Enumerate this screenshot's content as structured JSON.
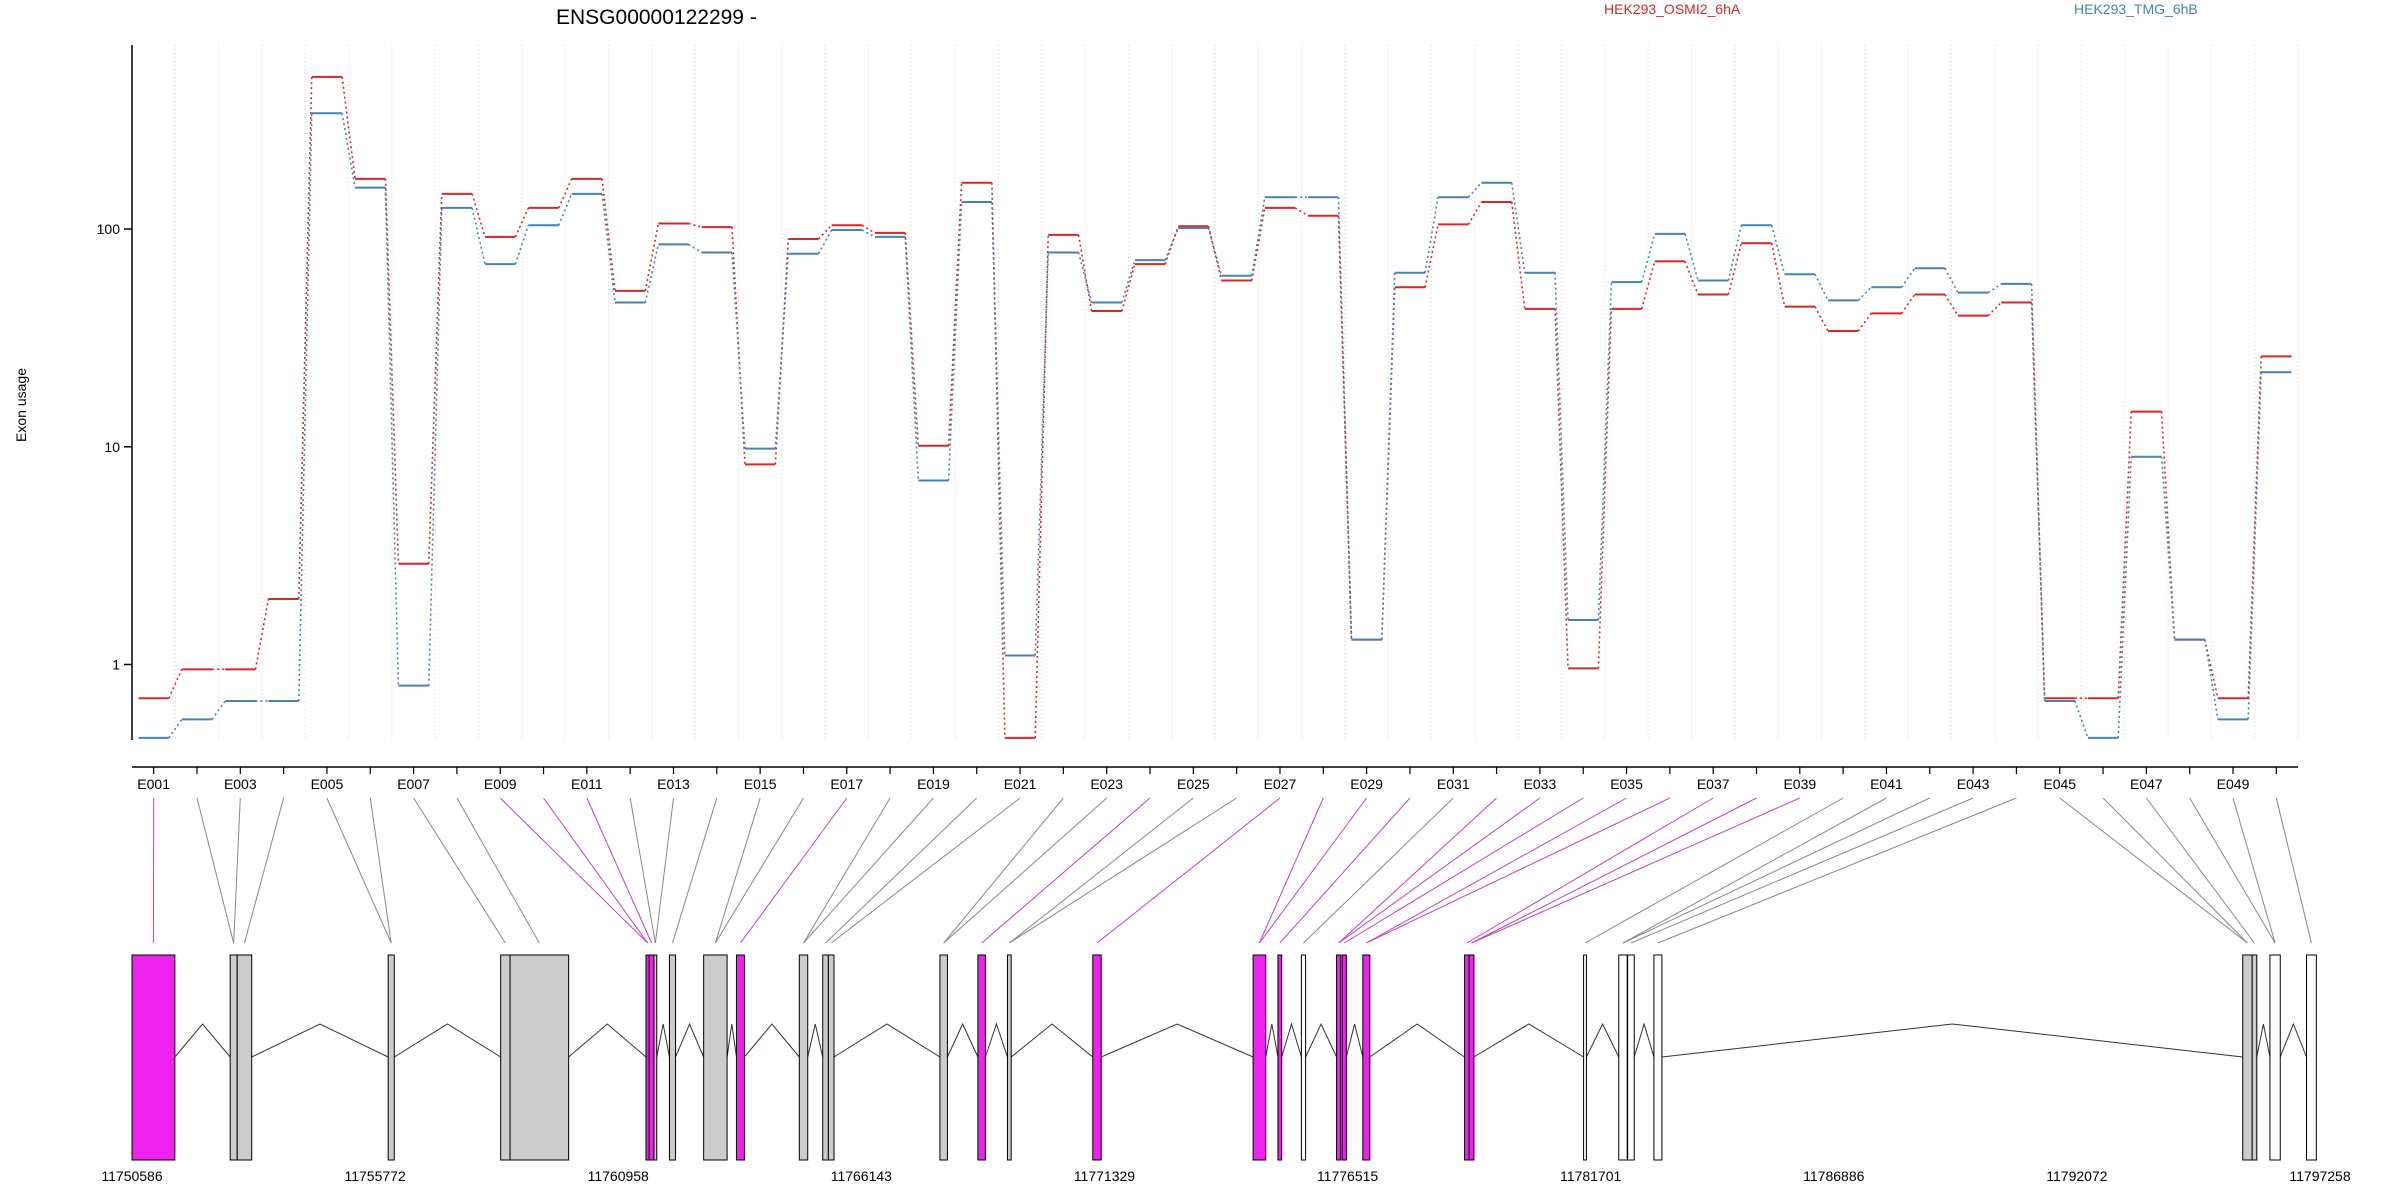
{
  "chart_data": {
    "type": "line",
    "title": "ENSG00000122299 -",
    "ylabel": "Exon usage",
    "y_scale": "log",
    "ylim": [
      0.45,
      700
    ],
    "y_ticks": [
      {
        "value": 1,
        "label": "1"
      },
      {
        "value": 10,
        "label": "10"
      },
      {
        "value": 100,
        "label": "100"
      }
    ],
    "grid": "vertical dotted per exon",
    "legend_position": "top",
    "exons": [
      "E001",
      "E002",
      "E003",
      "E004",
      "E005",
      "E006",
      "E007",
      "E008",
      "E009",
      "E010",
      "E011",
      "E012",
      "E013",
      "E014",
      "E015",
      "E016",
      "E017",
      "E018",
      "E019",
      "E020",
      "E021",
      "E022",
      "E023",
      "E024",
      "E025",
      "E026",
      "E027",
      "E028",
      "E029",
      "E030",
      "E031",
      "E032",
      "E033",
      "E034",
      "E035",
      "E036",
      "E037",
      "E038",
      "E039",
      "E040",
      "E041",
      "E042",
      "E043",
      "E044",
      "E045",
      "E046",
      "E047",
      "E048",
      "E049",
      "E050"
    ],
    "exon_tick_labels": [
      "E001",
      "E003",
      "E005",
      "E007",
      "E009",
      "E011",
      "E013",
      "E015",
      "E017",
      "E019",
      "E021",
      "E023",
      "E025",
      "E027",
      "E029",
      "E031",
      "E033",
      "E035",
      "E037",
      "E039",
      "E041",
      "E043",
      "E045",
      "E047",
      "E049"
    ],
    "series": [
      {
        "name": "HEK293_OSMI2_6hA",
        "color": "#d62728",
        "dash": "2,3",
        "values": [
          0.7,
          0.95,
          0.95,
          2.0,
          500,
          170,
          2.9,
          145,
          92,
          125,
          170,
          52,
          106,
          102,
          8.3,
          90,
          104,
          96,
          10.1,
          163,
          0.46,
          94,
          42,
          69,
          103,
          58,
          125,
          115,
          1.3,
          54,
          105,
          133,
          43,
          0.96,
          43,
          71,
          50,
          86,
          44,
          34,
          41,
          50,
          40,
          46,
          0.7,
          0.7,
          14.5,
          1.3,
          0.7,
          26
        ]
      },
      {
        "name": "HEK293_TMG_6hB",
        "color": "#4682b4",
        "dash": "2,3",
        "values": [
          0.46,
          0.56,
          0.68,
          0.68,
          340,
          155,
          0.8,
          125,
          69,
          104,
          145,
          46,
          85,
          78,
          9.8,
          77,
          99,
          92,
          7,
          133,
          1.1,
          78,
          46,
          72,
          101,
          61,
          140,
          140,
          1.3,
          63,
          140,
          163,
          63,
          1.6,
          57,
          95,
          58,
          104,
          62,
          47,
          54,
          66,
          51,
          56,
          0.68,
          0.46,
          9,
          1.3,
          0.56,
          22
        ]
      }
    ],
    "gene_model": {
      "coordinate_ticks": [
        "11750586",
        "11755772",
        "11760958",
        "11766143",
        "11771329",
        "11776515",
        "11781701",
        "11786886",
        "11792072",
        "11797258"
      ],
      "coordinate_range": [
        11750586,
        11797258
      ],
      "exon_colors": {
        "significant": "#ee22ee",
        "not_significant": "#cccccc",
        "other": "#ffffff"
      },
      "blocks": [
        {
          "s": 11750586,
          "e": 11751500,
          "c": "sig"
        },
        {
          "s": 11752680,
          "e": 11752830,
          "c": "gray"
        },
        {
          "s": 11752830,
          "e": 11753140,
          "c": "gray"
        },
        {
          "s": 11756050,
          "e": 11756180,
          "c": "gray"
        },
        {
          "s": 11758450,
          "e": 11758650,
          "c": "gray"
        },
        {
          "s": 11758650,
          "e": 11759900,
          "c": "gray"
        },
        {
          "s": 11761550,
          "e": 11761620,
          "c": "sig"
        },
        {
          "s": 11761620,
          "e": 11761720,
          "c": "sig"
        },
        {
          "s": 11761720,
          "e": 11761780,
          "c": "gray"
        },
        {
          "s": 11762050,
          "e": 11762180,
          "c": "gray"
        },
        {
          "s": 11762780,
          "e": 11763280,
          "c": "gray"
        },
        {
          "s": 11763480,
          "e": 11763650,
          "c": "sig"
        },
        {
          "s": 11764820,
          "e": 11765000,
          "c": "gray"
        },
        {
          "s": 11765320,
          "e": 11765440,
          "c": "gray"
        },
        {
          "s": 11765440,
          "e": 11765560,
          "c": "gray"
        },
        {
          "s": 11767820,
          "e": 11767980,
          "c": "gray"
        },
        {
          "s": 11768630,
          "e": 11768790,
          "c": "sig"
        },
        {
          "s": 11769260,
          "e": 11769340,
          "c": "gray"
        },
        {
          "s": 11771080,
          "e": 11771260,
          "c": "sig"
        },
        {
          "s": 11774500,
          "e": 11774770,
          "c": "sig"
        },
        {
          "s": 11775030,
          "e": 11775110,
          "c": "sig"
        },
        {
          "s": 11775530,
          "e": 11775620,
          "c": "white"
        },
        {
          "s": 11776280,
          "e": 11776370,
          "c": "sig"
        },
        {
          "s": 11776400,
          "e": 11776490,
          "c": "sig"
        },
        {
          "s": 11776840,
          "e": 11776990,
          "c": "sig"
        },
        {
          "s": 11779010,
          "e": 11779110,
          "c": "sig"
        },
        {
          "s": 11779110,
          "e": 11779210,
          "c": "sig"
        },
        {
          "s": 11781550,
          "e": 11781610,
          "c": "white"
        },
        {
          "s": 11782300,
          "e": 11782480,
          "c": "white"
        },
        {
          "s": 11782490,
          "e": 11782630,
          "c": "white"
        },
        {
          "s": 11783050,
          "e": 11783220,
          "c": "white"
        },
        {
          "s": 11795610,
          "e": 11795810,
          "c": "gray"
        },
        {
          "s": 11795810,
          "e": 11795910,
          "c": "gray"
        },
        {
          "s": 11796190,
          "e": 11796410,
          "c": "white"
        },
        {
          "s": 11796970,
          "e": 11797180,
          "c": "white"
        }
      ]
    }
  }
}
